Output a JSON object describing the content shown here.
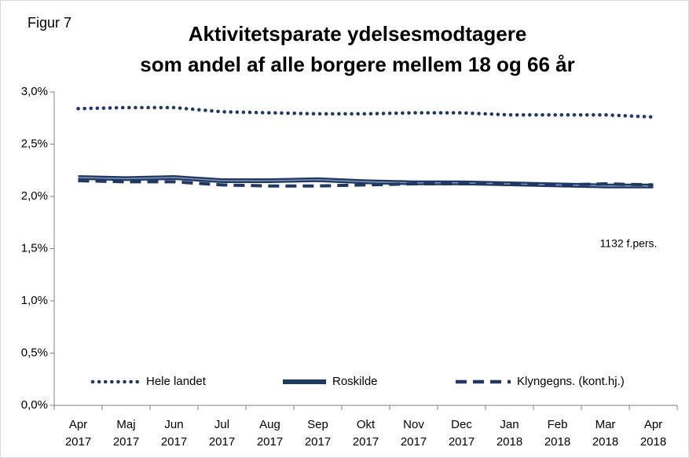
{
  "chart_data": {
    "type": "line",
    "label": "Figur 7",
    "title": [
      "Aktivitetsparate ydelsesmodtagere",
      "som andel af alle borgere mellem 18 og 66 år"
    ],
    "annotation": "1132 f.pers.",
    "categories": [
      [
        "Apr",
        "2017"
      ],
      [
        "Maj",
        "2017"
      ],
      [
        "Jun",
        "2017"
      ],
      [
        "Jul",
        "2017"
      ],
      [
        "Aug",
        "2017"
      ],
      [
        "Sep",
        "2017"
      ],
      [
        "Okt",
        "2017"
      ],
      [
        "Nov",
        "2017"
      ],
      [
        "Dec",
        "2017"
      ],
      [
        "Jan",
        "2018"
      ],
      [
        "Feb",
        "2018"
      ],
      [
        "Mar",
        "2018"
      ],
      [
        "Apr",
        "2018"
      ]
    ],
    "series": [
      {
        "name": "Hele landet",
        "color": "#1f3864",
        "style": "dotted",
        "values": [
          2.84,
          2.85,
          2.85,
          2.81,
          2.8,
          2.79,
          2.79,
          2.8,
          2.8,
          2.78,
          2.78,
          2.78,
          2.76
        ]
      },
      {
        "name": "Roskilde",
        "color": "#1f3864",
        "style": "solid",
        "values": [
          2.18,
          2.17,
          2.18,
          2.15,
          2.15,
          2.16,
          2.14,
          2.13,
          2.13,
          2.12,
          2.11,
          2.1,
          2.1
        ]
      },
      {
        "name": "Klyngegns. (kont.hj.)",
        "color": "#1f3864",
        "style": "dashed",
        "values": [
          2.15,
          2.14,
          2.14,
          2.11,
          2.1,
          2.1,
          2.11,
          2.12,
          2.12,
          2.12,
          2.11,
          2.12,
          2.11
        ]
      }
    ],
    "ylim": [
      0,
      3
    ],
    "yticks": [
      {
        "value": 0,
        "label": "0,0%"
      },
      {
        "value": 0.5,
        "label": "0,5%"
      },
      {
        "value": 1,
        "label": "1,0%"
      },
      {
        "value": 1.5,
        "label": "1,5%"
      },
      {
        "value": 2,
        "label": "2,0%"
      },
      {
        "value": 2.5,
        "label": "2,5%"
      },
      {
        "value": 3,
        "label": "3,0%"
      }
    ],
    "grid": false,
    "legend": "bottom"
  }
}
